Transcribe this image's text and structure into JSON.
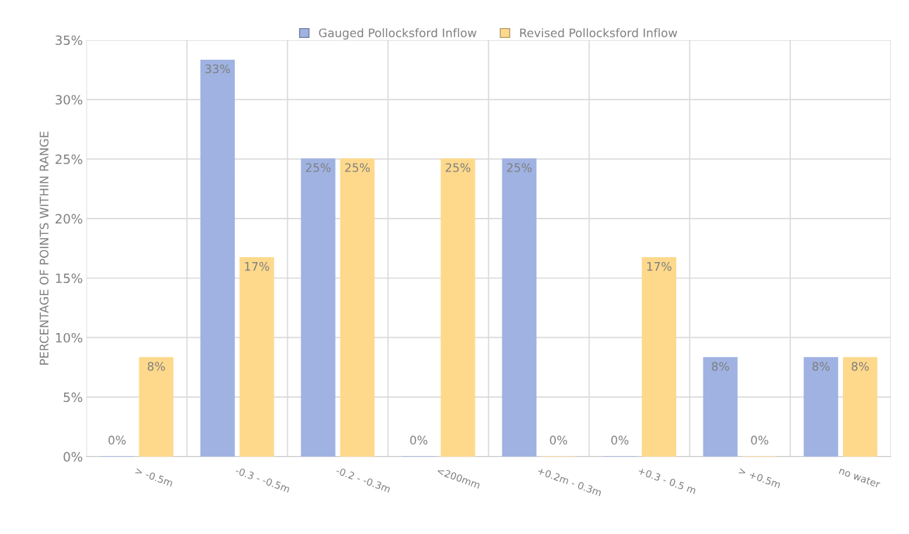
{
  "chart_data": {
    "type": "bar",
    "ylabel": "PERCENTAGE OF POINTS WITHIN RANGE",
    "categories": [
      "> -0.5m",
      "-0.3 - -0.5m",
      "-0.2 - -0.3m",
      "<200mm",
      "+0.2m - 0.3m",
      "+0.3 - 0.5 m",
      "> +0.5m",
      "no water"
    ],
    "series": [
      {
        "name": "Gauged Pollocksford Inflow",
        "color": "#9fb2e2",
        "values": [
          0,
          33.3,
          25,
          0,
          25,
          0,
          8.3,
          8.3
        ],
        "value_labels": [
          "0%",
          "33%",
          "25%",
          "0%",
          "25%",
          "0%",
          "8%",
          "8%"
        ]
      },
      {
        "name": "Revised Pollocksford Inflow",
        "color": "#fed98c",
        "values": [
          8.3,
          16.7,
          25,
          25,
          0,
          16.7,
          0,
          8.3
        ],
        "value_labels": [
          "8%",
          "17%",
          "25%",
          "25%",
          "0%",
          "17%",
          "0%",
          "8%"
        ]
      }
    ],
    "ylim": [
      0,
      35
    ],
    "yticks": [
      {
        "value": 0,
        "label": "0%"
      },
      {
        "value": 5,
        "label": "5%"
      },
      {
        "value": 10,
        "label": "10%"
      },
      {
        "value": 15,
        "label": "15%"
      },
      {
        "value": 20,
        "label": "20%"
      },
      {
        "value": 25,
        "label": "25%"
      },
      {
        "value": 30,
        "label": "30%"
      },
      {
        "value": 35,
        "label": "35%"
      }
    ],
    "grid": true,
    "legend": "top"
  }
}
